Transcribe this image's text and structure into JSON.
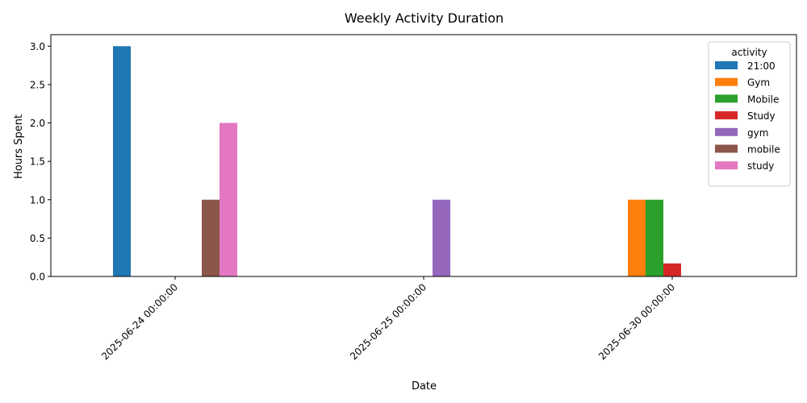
{
  "chart_data": {
    "type": "bar",
    "title": "Weekly Activity Duration",
    "xlabel": "Date",
    "ylabel": "Hours Spent",
    "ylim": [
      0,
      3.15
    ],
    "yticks": [
      "0.0",
      "0.5",
      "1.0",
      "1.5",
      "2.0",
      "2.5",
      "3.0"
    ],
    "ytick_values": [
      0,
      0.5,
      1.0,
      1.5,
      2.0,
      2.5,
      3.0
    ],
    "grid": false,
    "legend_position": "top-right",
    "legend_title": "activity",
    "categories": [
      "2025-06-24 00:00:00",
      "2025-06-25 00:00:00",
      "2025-06-30 00:00:00"
    ],
    "series": [
      {
        "name": "21:00",
        "color": "#1f77b4",
        "values": [
          3.0,
          0,
          0
        ]
      },
      {
        "name": "Gym",
        "color": "#ff7f0e",
        "values": [
          0,
          0,
          1.0
        ]
      },
      {
        "name": "Mobile",
        "color": "#2ca02c",
        "values": [
          0,
          0,
          1.0
        ]
      },
      {
        "name": "Study",
        "color": "#d62728",
        "values": [
          0,
          0,
          0.17
        ]
      },
      {
        "name": "gym",
        "color": "#9467bd",
        "values": [
          0,
          1.0,
          0
        ]
      },
      {
        "name": "mobile",
        "color": "#8c564b",
        "values": [
          1.0,
          0,
          0
        ]
      },
      {
        "name": "study",
        "color": "#e377c2",
        "values": [
          2.0,
          0,
          0
        ]
      }
    ]
  }
}
